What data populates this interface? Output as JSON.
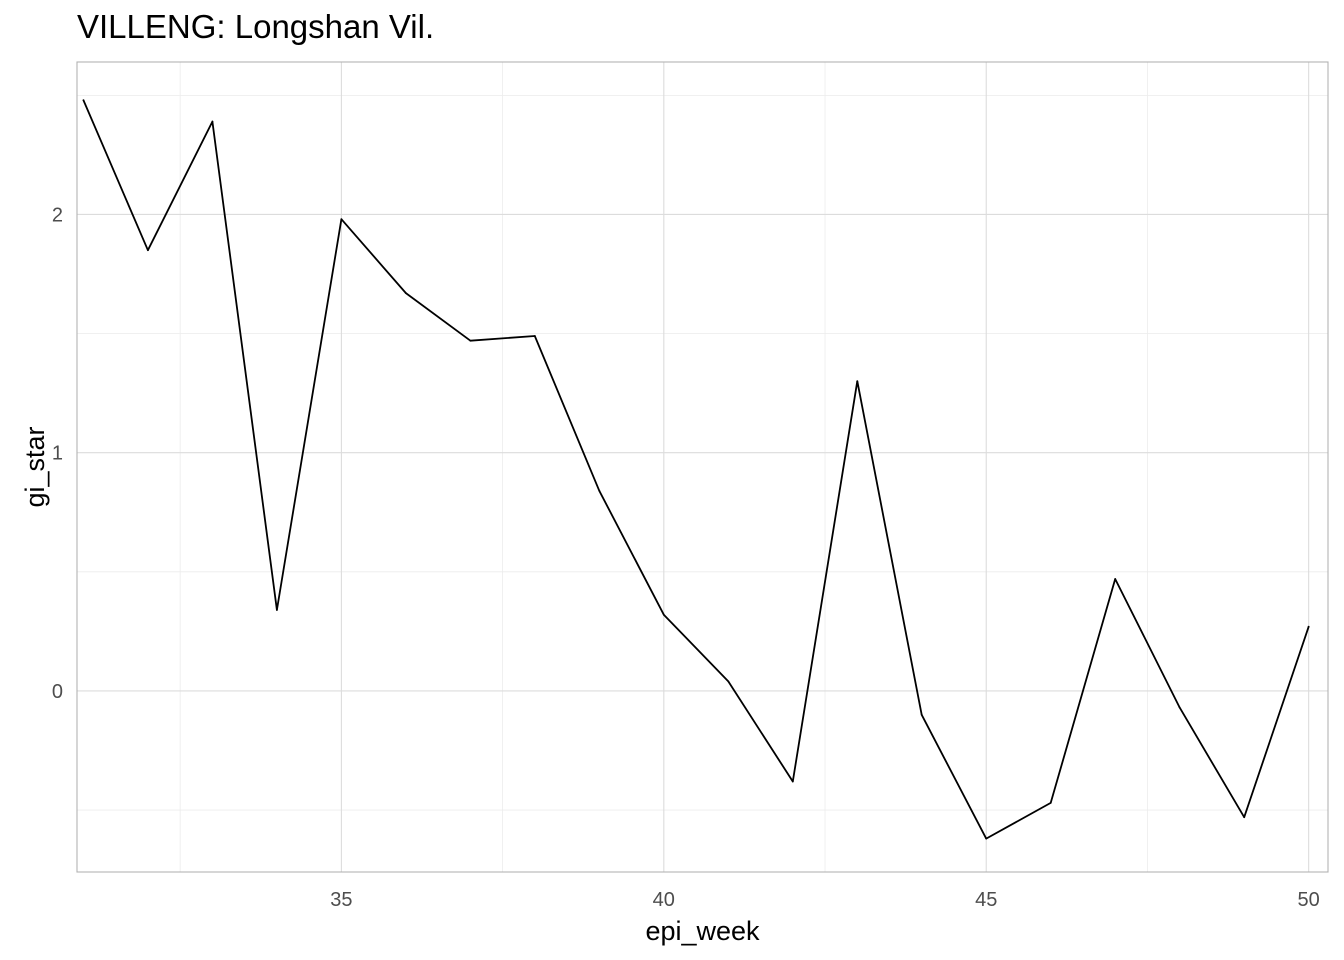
{
  "chart_data": {
    "type": "line",
    "title": "VILLENG: Longshan Vil.",
    "xlabel": "epi_week",
    "ylabel": "gi_star",
    "xlim": [
      30.9,
      50.3
    ],
    "ylim": [
      -0.76,
      2.64
    ],
    "x_ticks": [
      35,
      40,
      45,
      50
    ],
    "x_minor": [
      32.5,
      37.5,
      42.5,
      47.5
    ],
    "y_ticks": [
      0,
      1,
      2
    ],
    "y_minor": [
      -0.5,
      0.5,
      1.5,
      2.5
    ],
    "grid": true,
    "series": [
      {
        "x": [
          31,
          32,
          33,
          34,
          35,
          36,
          37,
          38,
          39,
          40,
          41,
          42,
          43,
          44,
          45,
          46,
          47,
          48,
          49,
          50
        ],
        "values": [
          2.48,
          1.85,
          2.39,
          0.34,
          1.98,
          1.67,
          1.47,
          1.49,
          0.84,
          0.32,
          0.04,
          -0.38,
          1.3,
          -0.1,
          -0.62,
          -0.47,
          0.47,
          -0.07,
          -0.53,
          0.27
        ]
      }
    ]
  }
}
